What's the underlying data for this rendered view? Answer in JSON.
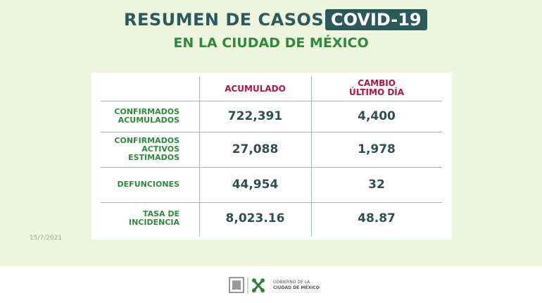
{
  "header": {
    "title": "RESUMEN DE CASOS",
    "badge": "COVID-19",
    "subtitle": "EN LA CIUDAD DE MÉXICO"
  },
  "table": {
    "columns": [
      [
        "ACUMULADO"
      ],
      [
        "CAMBIO",
        "ÚLTIMO DÍA"
      ]
    ],
    "rows": [
      {
        "label": [
          "CONFIRMADOS",
          "ACUMULADOS"
        ],
        "values": [
          "722,391",
          "4,400"
        ]
      },
      {
        "label": [
          "CONFIRMADOS",
          "ACTIVOS",
          "ESTIMADOS"
        ],
        "values": [
          "27,088",
          "1,978"
        ]
      },
      {
        "label": [
          "DEFUNCIONES"
        ],
        "values": [
          "44,954",
          "32"
        ]
      },
      {
        "label": [
          "TASA DE",
          "INCIDENCIA"
        ],
        "values": [
          "8,023.16",
          "48.87"
        ]
      }
    ]
  },
  "date": "15/7/2021",
  "footer": {
    "logo_text": [
      "GOBIERNO DE LA",
      "CIUDAD DE MÉXICO"
    ]
  }
}
